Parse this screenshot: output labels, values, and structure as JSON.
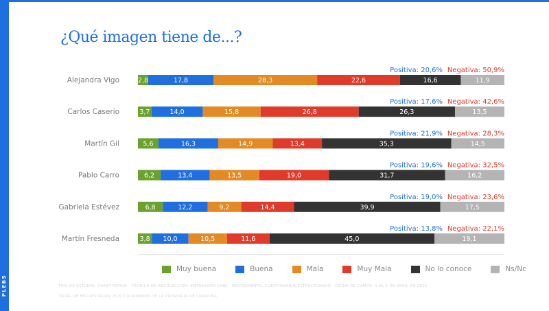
{
  "brand": "PLEBS",
  "chart_data": {
    "type": "bar",
    "stacked": true,
    "horizontal": true,
    "title": "¿Qué imagen tiene de...?",
    "categories": [
      "Alejandra Vigo",
      "Carlos Caserio",
      "Martín Gil",
      "Pablo Carro",
      "Gabriela Estévez",
      "Martín Fresneda"
    ],
    "series": [
      {
        "name": "Muy buena",
        "color": "#6aa22d",
        "values": [
          2.8,
          3.7,
          5.6,
          6.2,
          6.8,
          3.8
        ],
        "labels": [
          "2,8",
          "3,7",
          "5,6",
          "6,2",
          "6,8",
          "3,8"
        ]
      },
      {
        "name": "Buena",
        "color": "#1f6fe0",
        "values": [
          17.8,
          14.0,
          16.3,
          13.4,
          12.2,
          10.0
        ],
        "labels": [
          "17,8",
          "14,0",
          "16,3",
          "13,4",
          "12,2",
          "10,0"
        ]
      },
      {
        "name": "Mala",
        "color": "#e38a24",
        "values": [
          28.3,
          15.8,
          14.9,
          13.5,
          9.2,
          10.5
        ],
        "labels": [
          "28,3",
          "15,8",
          "14,9",
          "13,5",
          "9,2",
          "10,5"
        ]
      },
      {
        "name": "Muy Mala",
        "color": "#e03a2b",
        "values": [
          22.6,
          26.8,
          13.4,
          19.0,
          14.4,
          11.6
        ],
        "labels": [
          "22,6",
          "26,8",
          "13,4",
          "19,0",
          "14,4",
          "11,6"
        ]
      },
      {
        "name": "No lo conoce",
        "color": "#333333",
        "values": [
          16.6,
          26.3,
          35.3,
          31.7,
          39.9,
          45.0
        ],
        "labels": [
          "16,6",
          "26,3",
          "35,3",
          "31,7",
          "39,9",
          "45,0"
        ]
      },
      {
        "name": "Ns/Nc",
        "color": "#b4b4b4",
        "values": [
          11.9,
          13.5,
          14.5,
          16.2,
          17.5,
          19.1
        ],
        "labels": [
          "11,9",
          "13,5",
          "14,5",
          "16,2",
          "17,5",
          "19,1"
        ]
      }
    ],
    "positiva": [
      "Positiva: 20,6%",
      "Positiva: 17,6%",
      "Positiva: 21,9%",
      "Positiva: 19,6%",
      "Positiva: 19,0%",
      "Positiva: 13,8%"
    ],
    "negativa": [
      "Negativa: 50,9%",
      "Negativa: 42,6%",
      "Negativa: 28,3%",
      "Negativa: 32,5%",
      "Negativa: 23,6%",
      "Negativa: 22,1%"
    ],
    "positiva_color": "#1f6fe0",
    "negativa_color": "#e03a2b",
    "xlim": [
      0,
      100
    ],
    "legend_position": "bottom"
  },
  "footer": {
    "line1": "TIPO DE ESTUDIO: CUANTITATIVO · TÉCNICA DE RECOLECCIÓN: ENTREVISTA CAWI · INSTRUMENTO: CUESTIONARIO ESTRUCTURADO · FECHA DE CAMPO: 1 AL 5 DE ABRIL DE 2021",
    "line2": "TOTAL DE ENCUESTADOS: 818 CIUDADANOS DE LA PROVINCIA DE CÓRDOBA"
  }
}
